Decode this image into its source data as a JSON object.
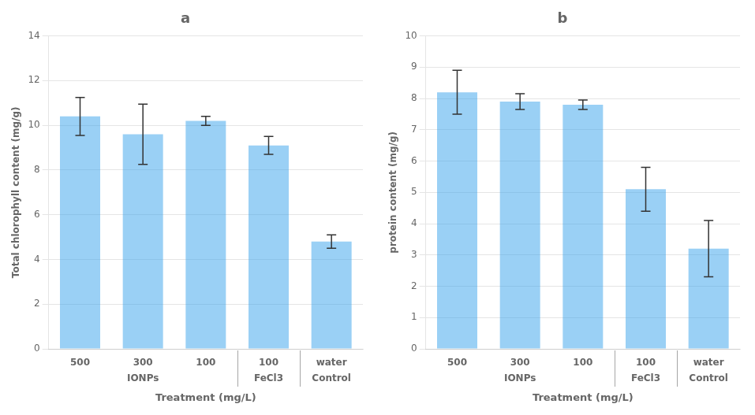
{
  "chart_data": [
    {
      "type": "bar",
      "title": "a",
      "y_label": "Total chlorophyll content (mg/g)",
      "x_label": "Treatment (mg/L)",
      "categories": [
        "500",
        "300",
        "100",
        "100",
        "water"
      ],
      "groups": [
        "IONPs",
        "IONPs",
        "IONPs",
        "FeCl3",
        "Control"
      ],
      "values": [
        10.4,
        9.6,
        10.2,
        9.1,
        4.8
      ],
      "errors": [
        0.85,
        1.35,
        0.2,
        0.4,
        0.3
      ],
      "ylim": [
        0,
        14
      ],
      "yticks": [
        0,
        2,
        4,
        6,
        8,
        10,
        12,
        14
      ],
      "grid": true
    },
    {
      "type": "bar",
      "title": "b",
      "y_label": "protein content (mg/g)",
      "x_label": "Treatment (mg/L)",
      "categories": [
        "500",
        "300",
        "100",
        "100",
        "water"
      ],
      "groups": [
        "IONPs",
        "IONPs",
        "IONPs",
        "FeCl3",
        "Control"
      ],
      "values": [
        8.2,
        7.9,
        7.8,
        5.1,
        3.2
      ],
      "errors": [
        0.7,
        0.25,
        0.15,
        0.7,
        0.9
      ],
      "ylim": [
        0,
        10
      ],
      "yticks": [
        0,
        1,
        2,
        3,
        4,
        5,
        6,
        7,
        8,
        9,
        10
      ],
      "grid": true
    }
  ]
}
